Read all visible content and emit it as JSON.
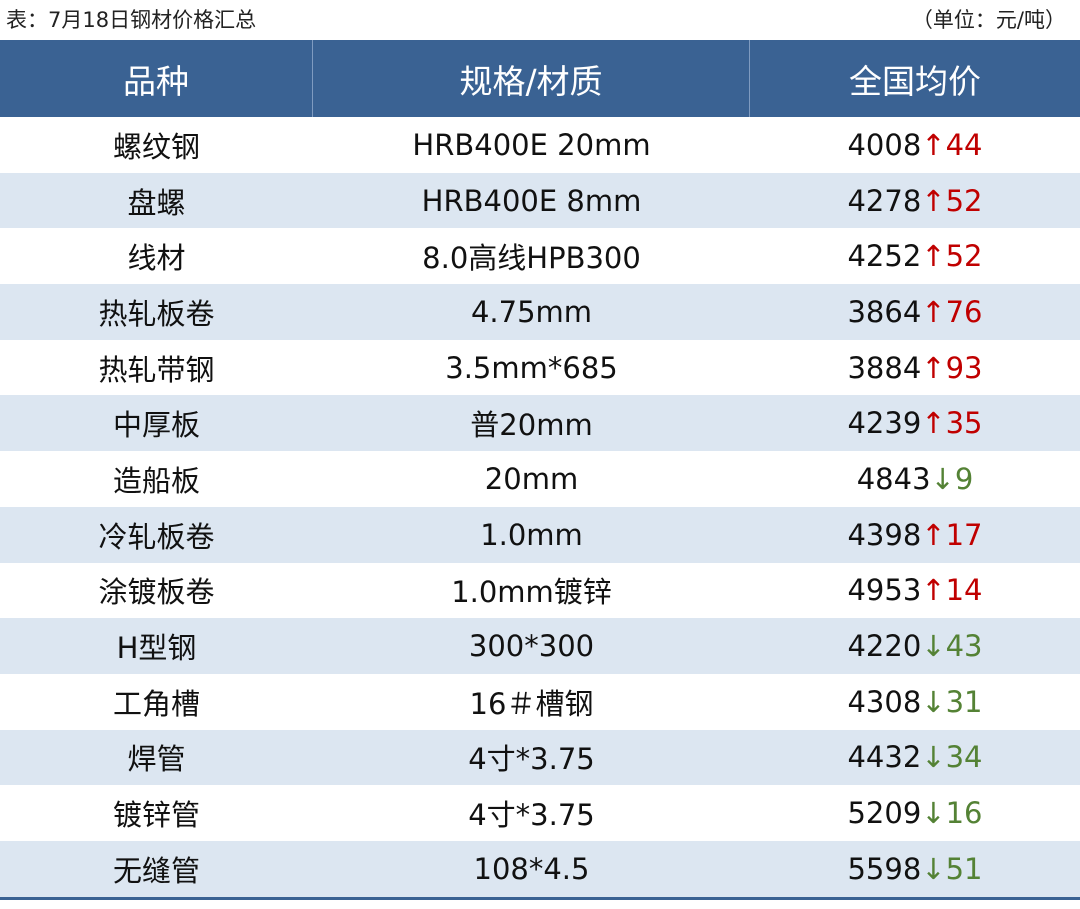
{
  "caption": {
    "title": "表：7月18日钢材价格汇总",
    "unit": "（单位：元/吨）"
  },
  "table": {
    "header": [
      "品种",
      "规格/材质",
      "全国均价"
    ],
    "up_color": "#c00000",
    "down_color": "#548235",
    "rows": [
      [
        "螺纹钢",
        "HRB400E 20mm",
        "4008",
        "↑44"
      ],
      [
        "盘螺",
        "HRB400E 8mm",
        "4278",
        "↑52"
      ],
      [
        "线材",
        "8.0高线HPB300",
        "4252",
        "↑52"
      ],
      [
        "热轧板卷",
        "4.75mm",
        "3864",
        "↑76"
      ],
      [
        "热轧带钢",
        "3.5mm*685",
        "3884",
        "↑93"
      ],
      [
        "中厚板",
        "普20mm",
        "4239",
        "↑35"
      ],
      [
        "造船板",
        "20mm",
        "4843",
        "↓9"
      ],
      [
        "冷轧板卷",
        "1.0mm",
        "4398",
        "↑17"
      ],
      [
        "涂镀板卷",
        "1.0mm镀锌",
        "4953",
        "↑14"
      ],
      [
        "H型钢",
        "300*300",
        "4220",
        "↓43"
      ],
      [
        "工角槽",
        "16＃槽钢",
        "4308",
        "↓31"
      ],
      [
        "焊管",
        "4寸*3.75",
        "4432",
        "↓34"
      ],
      [
        "镀锌管",
        "4寸*3.75",
        "5209",
        "↓16"
      ],
      [
        "无缝管",
        "108*4.5",
        "5598",
        "↓51"
      ]
    ]
  }
}
